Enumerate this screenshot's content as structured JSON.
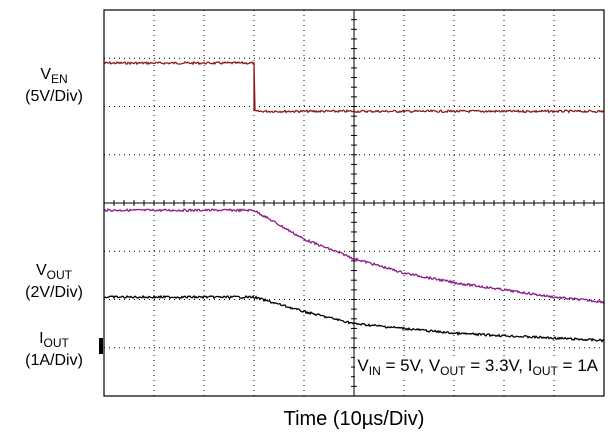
{
  "labels": {
    "ven_main": "V",
    "ven_sub": "EN",
    "ven_scale": "(5V/Div)",
    "vout_main": "V",
    "vout_sub": "OUT",
    "vout_scale": "(2V/Div)",
    "iout_main": "I",
    "iout_sub": "OUT",
    "iout_scale": "(1A/Div)",
    "xlabel": "Time (10µs/Div)",
    "cond_v": "V",
    "cond_vin_sub": "IN",
    "cond_vin_val": " = 5V, ",
    "cond_vout_sub": "OUT",
    "cond_vout_val": " = 3.3V, ",
    "cond_i": "I",
    "cond_iout_sub": "OUT",
    "cond_iout_val": " = 1A"
  },
  "chart_data": {
    "type": "line",
    "title": "",
    "xlabel": "Time (10µs/Div)",
    "x_divisions": 10,
    "y_divisions": 8,
    "grid": true,
    "x_unit": "div",
    "xlim": [
      0,
      10
    ],
    "series": [
      {
        "name": "VEN",
        "color": "#8b1a1a",
        "scale": "5V/Div",
        "x": [
          0,
          3,
          3,
          10
        ],
        "y_div": [
          6.9,
          6.9,
          5.9,
          5.9
        ]
      },
      {
        "name": "VOUT",
        "color": "#8b1a8b",
        "scale": "2V/Div",
        "x": [
          0,
          3,
          4,
          5,
          6,
          7,
          8,
          9,
          10
        ],
        "y_div": [
          3.85,
          3.85,
          3.25,
          2.85,
          2.55,
          2.35,
          2.2,
          2.05,
          1.95
        ]
      },
      {
        "name": "IOUT",
        "color": "#000000",
        "scale": "1A/Div",
        "x": [
          0,
          3,
          4,
          5,
          6,
          7,
          8,
          9,
          10
        ],
        "y_div": [
          2.05,
          2.05,
          1.75,
          1.5,
          1.4,
          1.3,
          1.25,
          1.2,
          1.15
        ]
      }
    ]
  }
}
